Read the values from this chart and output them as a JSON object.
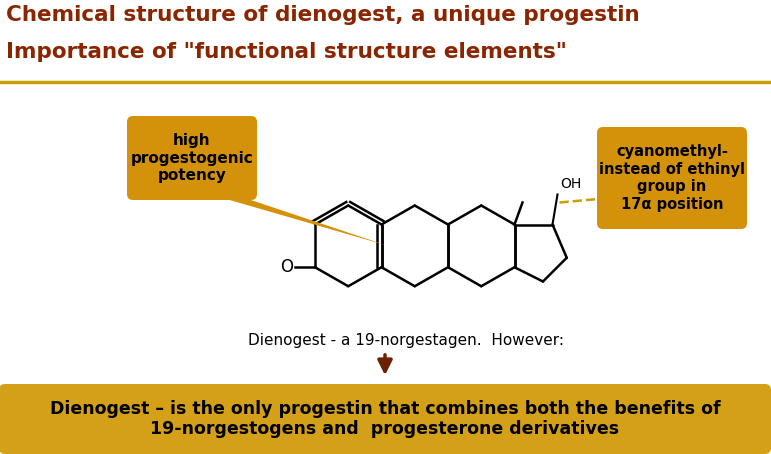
{
  "title_line1": "Chemical structure of dienogest, a unique progestin",
  "title_line2": "Importance of \"functional structure elements\"",
  "title_color": "#8B2500",
  "title_fontsize": 15.5,
  "bg_color": "#FFFFFF",
  "header_line_color": "#C8A000",
  "bubble_left_text": "high\nprogestogenic\npotency",
  "bubble_right_text": "cyanomethyl-\ninstead of ethinyl\ngroup in\n17α position",
  "bubble_color": "#D4920A",
  "bubble_text_color": "#000000",
  "bottom_box_text": "Dienogest – is the only progestin that combines both the benefits of\n19-norgestogens and  progesterone derivatives",
  "bottom_box_color": "#D4A017",
  "bottom_box_text_color": "#000000",
  "molecule_label": "Dienogest - a 19-norgestagen.  However:",
  "molecule_label_color": "#000000",
  "arrow_color": "#6B2000",
  "ch2cn_color": "#C8A000",
  "oh_color": "#000000",
  "fig_width": 7.71,
  "fig_height": 4.54,
  "dpi": 100
}
